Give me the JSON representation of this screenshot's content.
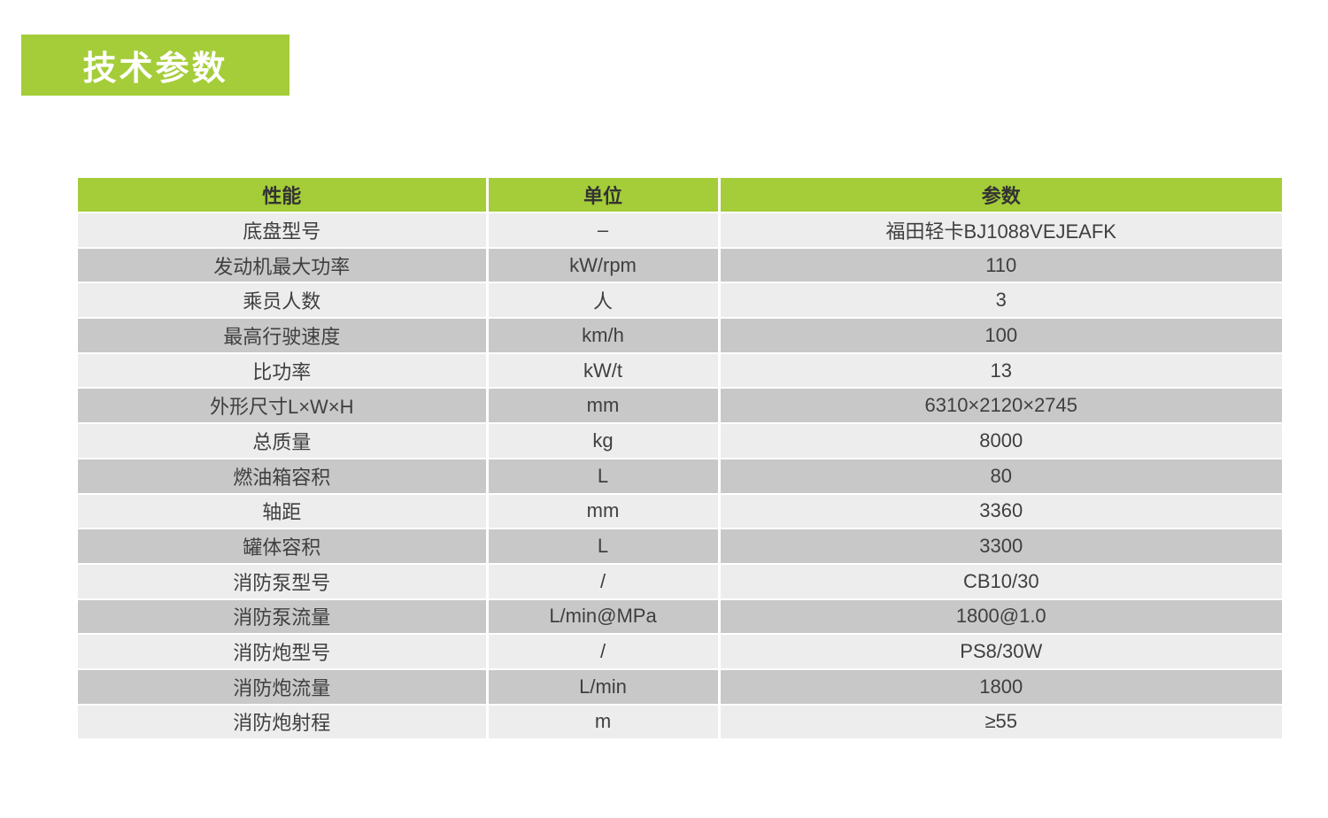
{
  "page": {
    "title_badge": "技术参数"
  },
  "colors": {
    "accent_green": "#a4cd39",
    "row_light": "#ededed",
    "row_dark": "#c8c8c8",
    "header_text": "#333333",
    "cell_text": "#3f3f3f",
    "badge_text": "#ffffff",
    "background": "#ffffff"
  },
  "table": {
    "headers": [
      "性能",
      "单位",
      "参数"
    ],
    "rows": [
      {
        "name": "底盘型号",
        "unit": "–",
        "value": "福田轻卡BJ1088VEJEAFK"
      },
      {
        "name": "发动机最大功率",
        "unit": "kW/rpm",
        "value": "110"
      },
      {
        "name": "乘员人数",
        "unit": "人",
        "value": "3"
      },
      {
        "name": "最高行驶速度",
        "unit": "km/h",
        "value": "100"
      },
      {
        "name": "比功率",
        "unit": "kW/t",
        "value": "13"
      },
      {
        "name": "外形尺寸L×W×H",
        "unit": "mm",
        "value": "6310×2120×2745"
      },
      {
        "name": "总质量",
        "unit": "kg",
        "value": "8000"
      },
      {
        "name": "燃油箱容积",
        "unit": "L",
        "value": "80"
      },
      {
        "name": "轴距",
        "unit": "mm",
        "value": "3360"
      },
      {
        "name": "罐体容积",
        "unit": "L",
        "value": "3300"
      },
      {
        "name": "消防泵型号",
        "unit": "/",
        "value": "CB10/30"
      },
      {
        "name": "消防泵流量",
        "unit": "L/min@MPa",
        "value": "1800@1.0"
      },
      {
        "name": "消防炮型号",
        "unit": "/",
        "value": "PS8/30W"
      },
      {
        "name": "消防炮流量",
        "unit": "L/min",
        "value": "1800"
      },
      {
        "name": "消防炮射程",
        "unit": "m",
        "value": "≥55"
      }
    ]
  }
}
